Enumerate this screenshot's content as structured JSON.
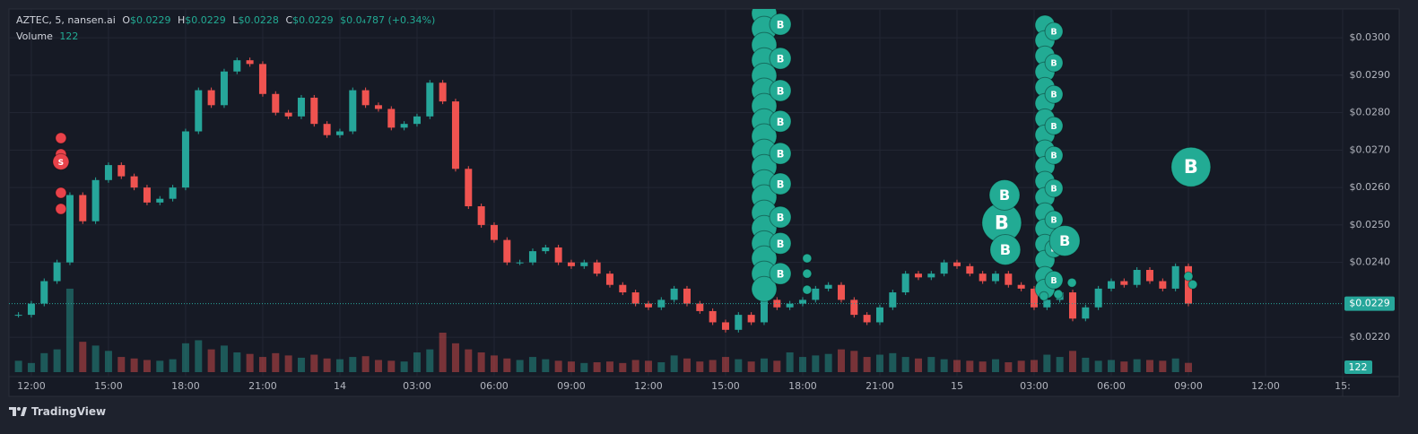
{
  "chart_data": {
    "type": "candlestick",
    "legend": {
      "symbol": "AZTEC, 5, nansen.ai",
      "ohlc": [
        {
          "key": "O",
          "value": "$0.0229"
        },
        {
          "key": "H",
          "value": "$0.0229"
        },
        {
          "key": "L",
          "value": "$0.0228"
        },
        {
          "key": "C",
          "value": "$0.0229"
        }
      ],
      "change": "$0.0₄787 (+0.34%)",
      "volume_label": "Volume"
    },
    "up_color": "#26a69a",
    "down_color": "#ef5350",
    "x": [
      -0.5,
      0,
      0.5,
      1,
      1.5,
      2,
      2.5,
      3,
      3.5,
      4,
      4.5,
      5,
      5.5,
      6,
      6.5,
      7,
      7.5,
      8,
      8.5,
      9,
      9.5,
      10,
      10.5,
      11,
      11.5,
      12,
      12.5,
      13,
      13.5,
      14,
      14.5,
      15,
      15.5,
      16,
      16.5,
      17,
      17.5,
      18,
      18.5,
      19,
      19.5,
      20,
      20.5,
      21,
      21.5,
      22,
      22.5,
      23,
      23.5,
      24,
      24.5,
      25,
      25.5,
      26,
      26.5,
      27,
      27.5,
      28,
      28.5,
      29,
      29.5,
      30,
      30.5,
      31,
      31.5,
      32,
      32.5,
      33,
      33.5,
      34,
      34.5,
      35,
      35.5,
      36,
      36.5,
      37,
      37.5,
      38,
      38.5,
      39,
      39.5,
      40,
      40.5,
      41,
      41.5,
      42,
      42.5,
      43,
      43.5,
      44,
      44.5,
      45
    ],
    "close": [
      0.0226,
      0.0229,
      0.0235,
      0.024,
      0.0258,
      0.0251,
      0.0262,
      0.0266,
      0.0263,
      0.026,
      0.0256,
      0.0257,
      0.026,
      0.0275,
      0.0286,
      0.0282,
      0.0291,
      0.0294,
      0.0293,
      0.0285,
      0.028,
      0.0279,
      0.0284,
      0.0277,
      0.0274,
      0.0275,
      0.0286,
      0.0282,
      0.0281,
      0.0276,
      0.0277,
      0.0279,
      0.0288,
      0.0283,
      0.0265,
      0.0255,
      0.025,
      0.0246,
      0.024,
      0.024,
      0.0243,
      0.0244,
      0.024,
      0.0239,
      0.024,
      0.0237,
      0.0234,
      0.0232,
      0.0229,
      0.0228,
      0.023,
      0.0233,
      0.0229,
      0.0227,
      0.0224,
      0.0222,
      0.0226,
      0.0224,
      0.023,
      0.0228,
      0.0229,
      0.023,
      0.0233,
      0.0234,
      0.023,
      0.0226,
      0.0224,
      0.0228,
      0.0232,
      0.0237,
      0.0236,
      0.0237,
      0.024,
      0.0239,
      0.0237,
      0.0235,
      0.0237,
      0.0234,
      0.0233,
      0.0228,
      0.023,
      0.0232,
      0.0225,
      0.0228,
      0.0233,
      0.0235,
      0.0234,
      0.0238,
      0.0235,
      0.0233,
      0.0239,
      0.0229
    ],
    "volume": [
      150,
      120,
      250,
      300,
      1100,
      400,
      350,
      280,
      200,
      180,
      160,
      150,
      170,
      380,
      420,
      300,
      350,
      260,
      240,
      200,
      250,
      220,
      190,
      230,
      180,
      170,
      200,
      210,
      160,
      150,
      140,
      260,
      300,
      520,
      380,
      300,
      260,
      220,
      180,
      160,
      200,
      170,
      150,
      140,
      120,
      130,
      140,
      120,
      160,
      150,
      130,
      220,
      180,
      140,
      160,
      200,
      170,
      140,
      180,
      150,
      260,
      200,
      220,
      240,
      300,
      280,
      200,
      230,
      250,
      200,
      180,
      200,
      170,
      160,
      150,
      140,
      170,
      130,
      150,
      160,
      230,
      200,
      280,
      190,
      150,
      160,
      140,
      170,
      160,
      150,
      180,
      122
    ],
    "volume_ylim": [
      0,
      1300
    ],
    "xlim": [
      -0.87,
      51.0
    ],
    "xticks": [
      {
        "value": 0,
        "label": "12:00"
      },
      {
        "value": 3,
        "label": "15:00"
      },
      {
        "value": 6,
        "label": "18:00"
      },
      {
        "value": 9,
        "label": "21:00"
      },
      {
        "value": 12,
        "label": "14"
      },
      {
        "value": 15,
        "label": "03:00"
      },
      {
        "value": 18,
        "label": "06:00"
      },
      {
        "value": 21,
        "label": "09:00"
      },
      {
        "value": 24,
        "label": "12:00"
      },
      {
        "value": 27,
        "label": "15:00"
      },
      {
        "value": 30,
        "label": "18:00"
      },
      {
        "value": 33,
        "label": "21:00"
      },
      {
        "value": 36,
        "label": "15"
      },
      {
        "value": 39,
        "label": "03:00"
      },
      {
        "value": 42,
        "label": "06:00"
      },
      {
        "value": 45,
        "label": "09:00"
      },
      {
        "value": 48,
        "label": "12:00"
      },
      {
        "value": 51,
        "label": "15:"
      }
    ],
    "ylim": [
      0.02095,
      0.03077
    ],
    "yticks": [
      {
        "value": 0.03,
        "label": "$0.0300"
      },
      {
        "value": 0.029,
        "label": "$0.0290"
      },
      {
        "value": 0.028,
        "label": "$0.0280"
      },
      {
        "value": 0.027,
        "label": "$0.0270"
      },
      {
        "value": 0.026,
        "label": "$0.0260"
      },
      {
        "value": 0.025,
        "label": "$0.0250"
      },
      {
        "value": 0.024,
        "label": "$0.0240"
      },
      {
        "value": 0.022,
        "label": "$0.0220"
      }
    ],
    "grid": true,
    "last_price": {
      "value": 0.0229,
      "label": "$0.0229"
    },
    "markers": [
      {
        "color": "#e8424a",
        "points": [
          {
            "x": 1.15,
            "price": 0.02732,
            "size": 6
          },
          {
            "x": 1.15,
            "price": 0.02689,
            "size": 6
          },
          {
            "x": 1.15,
            "price": 0.02669,
            "size": 9,
            "label": "S"
          },
          {
            "x": 1.15,
            "price": 0.02586,
            "size": 6
          },
          {
            "x": 1.15,
            "price": 0.02543,
            "size": 6
          }
        ]
      },
      {
        "color": "#22ab94",
        "points": [
          {
            "x": 28.5,
            "price": 0.03065,
            "size": 14
          },
          {
            "x": 28.5,
            "price": 0.03024,
            "size": 14
          },
          {
            "x": 28.5,
            "price": 0.02981,
            "size": 14
          },
          {
            "x": 28.5,
            "price": 0.0294,
            "size": 14
          },
          {
            "x": 28.5,
            "price": 0.02899,
            "size": 14
          },
          {
            "x": 28.5,
            "price": 0.02859,
            "size": 14
          },
          {
            "x": 28.5,
            "price": 0.02818,
            "size": 14
          },
          {
            "x": 28.5,
            "price": 0.02777,
            "size": 14
          },
          {
            "x": 28.5,
            "price": 0.02737,
            "size": 14
          },
          {
            "x": 28.5,
            "price": 0.02696,
            "size": 14
          },
          {
            "x": 28.5,
            "price": 0.02655,
            "size": 14
          },
          {
            "x": 28.5,
            "price": 0.02614,
            "size": 14
          },
          {
            "x": 28.5,
            "price": 0.02574,
            "size": 14
          },
          {
            "x": 28.5,
            "price": 0.02533,
            "size": 14
          },
          {
            "x": 28.5,
            "price": 0.02492,
            "size": 14
          },
          {
            "x": 28.5,
            "price": 0.02451,
            "size": 14
          },
          {
            "x": 28.5,
            "price": 0.02411,
            "size": 14
          },
          {
            "x": 28.5,
            "price": 0.0237,
            "size": 14
          },
          {
            "x": 28.5,
            "price": 0.02329,
            "size": 14
          },
          {
            "x": 29.13,
            "price": 0.03036,
            "size": 12,
            "label": "B"
          },
          {
            "x": 29.13,
            "price": 0.02945,
            "size": 12,
            "label": "B"
          },
          {
            "x": 29.13,
            "price": 0.02859,
            "size": 12,
            "label": "B"
          },
          {
            "x": 29.13,
            "price": 0.02777,
            "size": 12,
            "label": "B"
          },
          {
            "x": 29.13,
            "price": 0.02691,
            "size": 12,
            "label": "B"
          },
          {
            "x": 29.13,
            "price": 0.0261,
            "size": 12,
            "label": "B"
          },
          {
            "x": 29.13,
            "price": 0.02521,
            "size": 12,
            "label": "B"
          },
          {
            "x": 29.13,
            "price": 0.02451,
            "size": 12,
            "label": "B"
          },
          {
            "x": 29.13,
            "price": 0.0237,
            "size": 12,
            "label": "B"
          },
          {
            "x": 30.17,
            "price": 0.02411,
            "size": 5
          },
          {
            "x": 30.17,
            "price": 0.0237,
            "size": 5
          },
          {
            "x": 30.17,
            "price": 0.02327,
            "size": 5
          },
          {
            "x": 39.42,
            "price": 0.03034,
            "size": 11
          },
          {
            "x": 39.42,
            "price": 0.02993,
            "size": 11
          },
          {
            "x": 39.42,
            "price": 0.02952,
            "size": 11
          },
          {
            "x": 39.42,
            "price": 0.02909,
            "size": 11
          },
          {
            "x": 39.42,
            "price": 0.02868,
            "size": 11
          },
          {
            "x": 39.42,
            "price": 0.02825,
            "size": 11
          },
          {
            "x": 39.42,
            "price": 0.02784,
            "size": 11
          },
          {
            "x": 39.42,
            "price": 0.02741,
            "size": 11
          },
          {
            "x": 39.42,
            "price": 0.02701,
            "size": 11
          },
          {
            "x": 39.42,
            "price": 0.02657,
            "size": 11
          },
          {
            "x": 39.42,
            "price": 0.02617,
            "size": 11
          },
          {
            "x": 39.42,
            "price": 0.02574,
            "size": 11
          },
          {
            "x": 39.42,
            "price": 0.02533,
            "size": 11
          },
          {
            "x": 39.42,
            "price": 0.0249,
            "size": 11
          },
          {
            "x": 39.42,
            "price": 0.02449,
            "size": 11
          },
          {
            "x": 39.42,
            "price": 0.02406,
            "size": 11
          },
          {
            "x": 39.42,
            "price": 0.02363,
            "size": 11
          },
          {
            "x": 39.42,
            "price": 0.02329,
            "size": 11
          },
          {
            "x": 39.77,
            "price": 0.03017,
            "size": 10,
            "label": "B"
          },
          {
            "x": 39.77,
            "price": 0.02933,
            "size": 10,
            "label": "B"
          },
          {
            "x": 39.77,
            "price": 0.02849,
            "size": 10,
            "label": "B"
          },
          {
            "x": 39.77,
            "price": 0.02765,
            "size": 10,
            "label": "B"
          },
          {
            "x": 39.77,
            "price": 0.02686,
            "size": 10,
            "label": "B"
          },
          {
            "x": 39.77,
            "price": 0.02598,
            "size": 10,
            "label": "B"
          },
          {
            "x": 39.77,
            "price": 0.02514,
            "size": 10,
            "label": "B"
          },
          {
            "x": 39.77,
            "price": 0.02437,
            "size": 10,
            "label": "B"
          },
          {
            "x": 39.77,
            "price": 0.02353,
            "size": 10,
            "label": "B"
          },
          {
            "x": 39.38,
            "price": 0.0231,
            "size": 5
          },
          {
            "x": 39.94,
            "price": 0.02315,
            "size": 5
          },
          {
            "x": 40.47,
            "price": 0.02346,
            "size": 5
          },
          {
            "x": 37.74,
            "price": 0.02506,
            "size": 22,
            "label": "B"
          },
          {
            "x": 37.85,
            "price": 0.0258,
            "size": 17,
            "label": "B"
          },
          {
            "x": 37.88,
            "price": 0.02434,
            "size": 17,
            "label": "B"
          },
          {
            "x": 40.19,
            "price": 0.02458,
            "size": 17,
            "label": "B"
          },
          {
            "x": 45.0,
            "price": 0.02363,
            "size": 5
          },
          {
            "x": 45.17,
            "price": 0.02341,
            "size": 5
          },
          {
            "x": 45.1,
            "price": 0.02655,
            "size": 22,
            "label": "B"
          }
        ]
      }
    ]
  }
}
